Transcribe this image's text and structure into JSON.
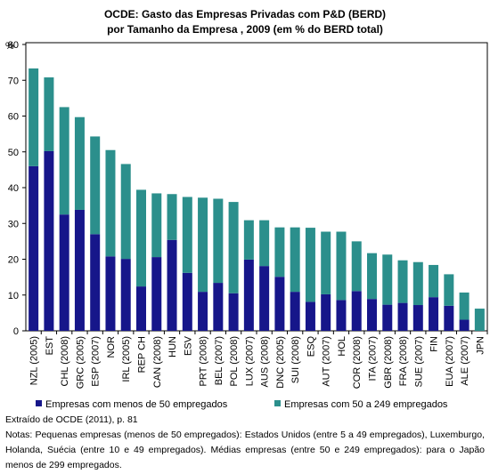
{
  "chart_data": {
    "type": "stacked_bar",
    "title": [
      "OCDE: Gasto das Empresas Privadas com P&D (BERD)",
      "por Tamanho da Empresa , 2009 (em % do BERD total)"
    ],
    "y_label": "%",
    "categories": [
      "NZL (2005)",
      "EST",
      "CHL (2008)",
      "GRC (2005)",
      "ESP (2007)",
      "NOR",
      "IRL (2005)",
      "REP CH",
      "CAN (2008)",
      "HUN",
      "ESV",
      "PRT (2008)",
      "BEL (2007)",
      "POL (2008)",
      "LUX (2007)",
      "AUS (2008)",
      "DNC (2005)",
      "SUI (2008)",
      "ESQ",
      "AUT (2007)",
      "HOL",
      "COR (2008)",
      "ITA (2007)",
      "GBR (2008)",
      "FRA (2008)",
      "SUE (2007)",
      "FIN",
      "EUA (2007)",
      "ALE (2007)",
      "JPN"
    ],
    "series": [
      {
        "name": "Empresas com menos de 50 empregados",
        "color": "#16168a",
        "values": [
          46,
          50.2,
          32.5,
          33.8,
          27,
          20.8,
          20.1,
          12.4,
          20.6,
          25.4,
          16.2,
          10.9,
          13.4,
          10.5,
          19.9,
          18.1,
          15.1,
          10.9,
          8.1,
          10.2,
          8.6,
          11.1,
          8.9,
          7.3,
          7.8,
          7.2,
          9.4,
          7,
          3.1,
          0
        ]
      },
      {
        "name": "Empresas com 50 a 249 empregados",
        "color": "#2b8f8c",
        "values": [
          27.3,
          20.6,
          30,
          25.9,
          27.3,
          29.7,
          26.5,
          27,
          17.8,
          12.8,
          21.2,
          26.3,
          23.5,
          25.5,
          11,
          12.8,
          13.8,
          18,
          20.7,
          17.5,
          19.1,
          13.9,
          12.8,
          14,
          11.9,
          12,
          9,
          8.8,
          7.6,
          6.2
        ]
      }
    ],
    "ylim": [
      0,
      80
    ],
    "yticks": [
      0,
      10,
      20,
      30,
      40,
      50,
      60,
      70,
      80
    ],
    "grid": false,
    "source": "Extraído de OCDE (2011), p. 81",
    "notes": "Notas: Pequenas empresas (menos de 50 empregados): Estados Unidos (entre 5 a 49 empregados), Luxemburgo, Holanda, Suécia (entre 10 e 49 empregados). Médias empresas (entre 50 e 249 empregados): para o Japão menos de 299 empregados."
  }
}
